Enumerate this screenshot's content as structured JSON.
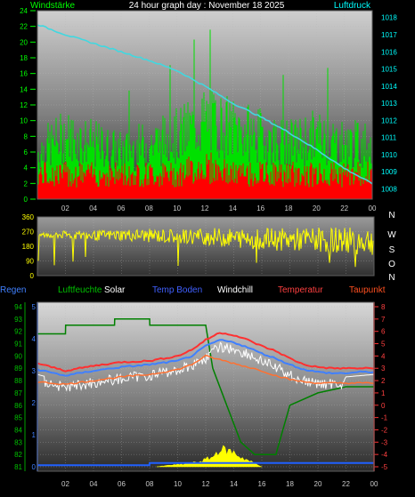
{
  "header": {
    "left_label": "Windstärke",
    "title": "24 hour graph day : November 18 2025",
    "right_label": "Luftdruck"
  },
  "colors": {
    "wind": "#00e000",
    "gust": "#ff0000",
    "pressure": "#40d8e0",
    "direction": "#ffff00",
    "humidity": "#008000",
    "solar": "#ffff00",
    "ground": "#4080ff",
    "windchill": "#ffffff",
    "temperature": "#ff3030",
    "dewpoint": "#ff7030",
    "rain": "#2060ff",
    "label_left": "#00ff00",
    "label_right": "#00ffff",
    "legend_rain": "#4080ff",
    "legend_humidity": "#00c000",
    "legend_solar": "#ffffff",
    "legend_ground": "#4060ff",
    "legend_windchill": "#ffffff",
    "legend_temp": "#ff4040",
    "legend_dew": "#ff5020"
  },
  "chart_data": [
    {
      "type": "line",
      "panel": "wind-pressure",
      "x_ticks": [
        "02",
        "04",
        "06",
        "08",
        "10",
        "12",
        "14",
        "16",
        "18",
        "20",
        "22",
        "00"
      ],
      "y_left_ticks": [
        "0",
        "2",
        "4",
        "6",
        "8",
        "10",
        "12",
        "14",
        "16",
        "18",
        "20",
        "22",
        "24"
      ],
      "y_left_range": [
        0,
        24
      ],
      "y_right_ticks": [
        "1008",
        "1009",
        "1010",
        "1011",
        "1012",
        "1013",
        "1014",
        "1015",
        "1016",
        "1017",
        "1018"
      ],
      "y_right_range": [
        1007.4,
        1018.4
      ],
      "series": [
        {
          "name": "Windstärke",
          "axis": "left",
          "x": [
            0,
            2,
            4,
            6,
            8,
            10,
            12,
            14,
            16,
            18,
            20,
            22,
            24
          ],
          "values": [
            6,
            8,
            7,
            6,
            7,
            8,
            10,
            9,
            8,
            7,
            8,
            7,
            7
          ]
        },
        {
          "name": "gust",
          "axis": "left",
          "x": [
            0,
            2,
            4,
            6,
            8,
            10,
            12,
            14,
            16,
            18,
            20,
            22,
            24
          ],
          "values": [
            3,
            3,
            3,
            3,
            3,
            3,
            4,
            3,
            3,
            3,
            3,
            3,
            3
          ]
        },
        {
          "name": "Luftdruck",
          "axis": "right",
          "x": [
            0,
            2,
            4,
            6,
            8,
            10,
            12,
            14,
            16,
            18,
            20,
            22,
            24
          ],
          "values": [
            1017.6,
            1017.0,
            1016.5,
            1016.0,
            1015.5,
            1014.9,
            1014.0,
            1013.0,
            1012.2,
            1011.3,
            1010.3,
            1009.2,
            1008.3
          ]
        }
      ]
    },
    {
      "type": "line",
      "panel": "wind-direction",
      "x_ticks": [
        "02",
        "04",
        "06",
        "08",
        "10",
        "12",
        "14",
        "16",
        "18",
        "20",
        "22",
        "00"
      ],
      "y_ticks": [
        "0",
        "90",
        "180",
        "270",
        "360"
      ],
      "y_range": [
        0,
        360
      ],
      "compass_labels": [
        "N",
        "W",
        "S",
        "O",
        "N"
      ],
      "series": [
        {
          "name": "direction",
          "x": [
            0,
            2,
            4,
            6,
            8,
            10,
            12,
            14,
            16,
            18,
            20,
            22,
            24
          ],
          "values": [
            250,
            250,
            245,
            250,
            245,
            240,
            240,
            230,
            225,
            220,
            220,
            215,
            215
          ]
        }
      ]
    },
    {
      "type": "line",
      "panel": "temperature",
      "legend": [
        "Regen",
        "Luftfeuchte",
        "Solar",
        "Temp Boden",
        "Windchill",
        "Temperatur",
        "Taupunkt"
      ],
      "x_ticks": [
        "02",
        "04",
        "06",
        "08",
        "10",
        "12",
        "14",
        "16",
        "18",
        "20",
        "22",
        "00"
      ],
      "y_left_ticks": [
        "81",
        "82",
        "83",
        "84",
        "85",
        "86",
        "87",
        "88",
        "89",
        "90",
        "91",
        "92",
        "93",
        "94"
      ],
      "y_left_range": [
        81,
        94
      ],
      "y_rain_ticks": [
        "0",
        "1",
        "2",
        "3",
        "4",
        "5"
      ],
      "y_rain_range": [
        0,
        5
      ],
      "y_right_ticks": [
        "-5",
        "-4",
        "-3",
        "-2",
        "-1",
        "0",
        "1",
        "2",
        "3",
        "4",
        "5",
        "6",
        "7",
        "8"
      ],
      "y_right_range": [
        -5,
        8
      ],
      "series": [
        {
          "name": "Luftfeuchte",
          "axis": "left",
          "x": [
            0,
            2,
            2.01,
            5.5,
            5.51,
            8,
            8.01,
            12,
            12.5,
            13.5,
            14.5,
            15.5,
            17,
            18,
            20,
            22,
            24
          ],
          "values": [
            91.8,
            91.8,
            92.5,
            92.5,
            93,
            93,
            92.5,
            92.5,
            89,
            86,
            83,
            82,
            82,
            86,
            87,
            87.5,
            87.5
          ]
        },
        {
          "name": "Temperatur",
          "axis": "right",
          "x": [
            0,
            2,
            4,
            6,
            8,
            10,
            11,
            12,
            13,
            14,
            15,
            16,
            17,
            18,
            19,
            20,
            21,
            22,
            23,
            24
          ],
          "values": [
            3.4,
            2.8,
            3.2,
            3.5,
            3.6,
            4.0,
            4.5,
            5.3,
            5.9,
            5.7,
            5.3,
            4.8,
            4.4,
            3.8,
            3.3,
            3.1,
            3.0,
            3.0,
            3.0,
            3.0
          ]
        },
        {
          "name": "Temp Boden",
          "axis": "right",
          "x": [
            0,
            2,
            4,
            6,
            8,
            10,
            11,
            12,
            13,
            14,
            15,
            16,
            17,
            18,
            19,
            20,
            21,
            22,
            23,
            24
          ],
          "values": [
            2.9,
            2.4,
            2.8,
            3.1,
            3.3,
            3.6,
            4.0,
            4.8,
            5.3,
            5.1,
            4.7,
            4.2,
            3.8,
            3.3,
            2.9,
            2.7,
            2.6,
            2.6,
            2.7,
            2.7
          ]
        },
        {
          "name": "Windchill",
          "axis": "right",
          "x": [
            0,
            2,
            4,
            6,
            8,
            10,
            11,
            12,
            13,
            14,
            15,
            16,
            17,
            18,
            19,
            20,
            21,
            22,
            23,
            24
          ],
          "values": [
            2.5,
            1.9,
            2.3,
            2.6,
            2.9,
            3.3,
            3.7,
            4.3,
            5.2,
            5.0,
            4.6,
            4.0,
            3.5,
            2.9,
            2.4,
            2.2,
            2.2,
            2.3,
            2.4,
            2.5
          ]
        },
        {
          "name": "Taupunkt",
          "axis": "right",
          "x": [
            0,
            2,
            4,
            6,
            8,
            10,
            11,
            12,
            13,
            14,
            15,
            16,
            17,
            18,
            19,
            20,
            21,
            22,
            23,
            24
          ],
          "values": [
            1.9,
            1.7,
            2.0,
            2.3,
            2.5,
            2.9,
            3.3,
            4.0,
            3.7,
            3.4,
            3.1,
            2.8,
            2.4,
            2.1,
            1.9,
            1.8,
            1.8,
            1.8,
            1.8,
            1.8
          ]
        },
        {
          "name": "Solar",
          "axis": "rain",
          "x": [
            8.5,
            9.5,
            10.5,
            11.5,
            12.5,
            13.0,
            13.5,
            14.0,
            14.5,
            15.0,
            15.5,
            16.0
          ],
          "values": [
            0,
            0.05,
            0.08,
            0.15,
            0.3,
            0.55,
            0.5,
            0.45,
            0.3,
            0.2,
            0.1,
            0
          ]
        },
        {
          "name": "Regen",
          "axis": "rain",
          "x": [
            0,
            7.99,
            8,
            24
          ],
          "values": [
            0.05,
            0.05,
            0.12,
            0.12
          ]
        }
      ]
    }
  ]
}
